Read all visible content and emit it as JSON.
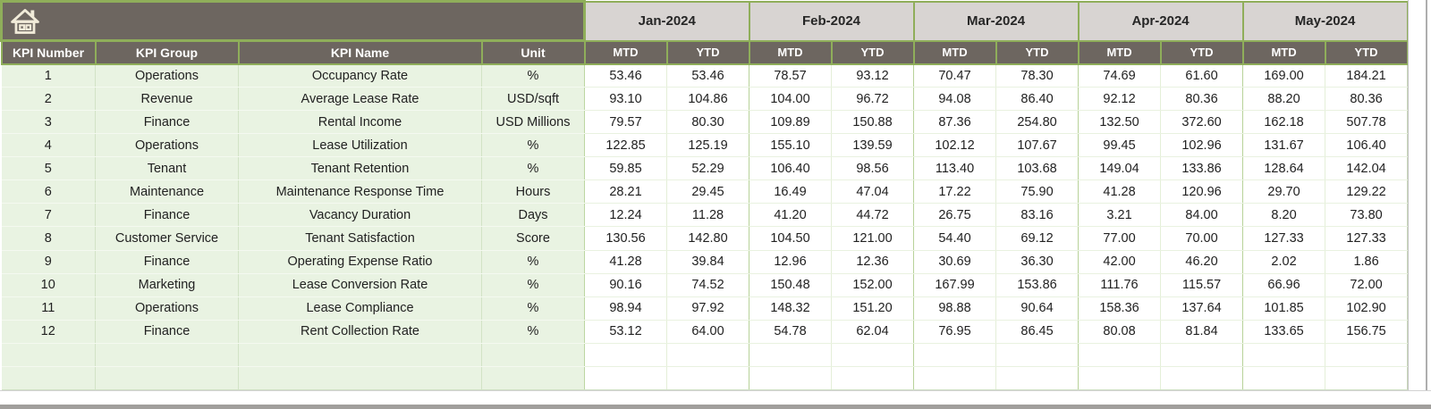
{
  "sheet": {
    "month_headers": [
      "Jan-2024",
      "Feb-2024",
      "Mar-2024",
      "Apr-2024",
      "May-2024"
    ],
    "period_subheaders": [
      "MTD",
      "YTD"
    ],
    "kpi_headers": [
      "KPI Number",
      "KPI Group",
      "KPI Name",
      "Unit"
    ],
    "rows": [
      {
        "number": "1",
        "group": "Operations",
        "name": "Occupancy Rate",
        "unit": "%",
        "values": [
          "53.46",
          "53.46",
          "78.57",
          "93.12",
          "70.47",
          "78.30",
          "74.69",
          "61.60",
          "169.00",
          "184.21"
        ]
      },
      {
        "number": "2",
        "group": "Revenue",
        "name": "Average Lease Rate",
        "unit": "USD/sqft",
        "values": [
          "93.10",
          "104.86",
          "104.00",
          "96.72",
          "94.08",
          "86.40",
          "92.12",
          "80.36",
          "88.20",
          "80.36"
        ]
      },
      {
        "number": "3",
        "group": "Finance",
        "name": "Rental Income",
        "unit": "USD Millions",
        "values": [
          "79.57",
          "80.30",
          "109.89",
          "150.88",
          "87.36",
          "254.80",
          "132.50",
          "372.60",
          "162.18",
          "507.78"
        ]
      },
      {
        "number": "4",
        "group": "Operations",
        "name": "Lease Utilization",
        "unit": "%",
        "values": [
          "122.85",
          "125.19",
          "155.10",
          "139.59",
          "102.12",
          "107.67",
          "99.45",
          "102.96",
          "131.67",
          "106.40"
        ]
      },
      {
        "number": "5",
        "group": "Tenant",
        "name": "Tenant Retention",
        "unit": "%",
        "values": [
          "59.85",
          "52.29",
          "106.40",
          "98.56",
          "113.40",
          "103.68",
          "149.04",
          "133.86",
          "128.64",
          "142.04"
        ]
      },
      {
        "number": "6",
        "group": "Maintenance",
        "name": "Maintenance Response Time",
        "unit": "Hours",
        "values": [
          "28.21",
          "29.45",
          "16.49",
          "47.04",
          "17.22",
          "75.90",
          "41.28",
          "120.96",
          "29.70",
          "129.22"
        ]
      },
      {
        "number": "7",
        "group": "Finance",
        "name": "Vacancy Duration",
        "unit": "Days",
        "values": [
          "12.24",
          "11.28",
          "41.20",
          "44.72",
          "26.75",
          "83.16",
          "3.21",
          "84.00",
          "8.20",
          "73.80"
        ]
      },
      {
        "number": "8",
        "group": "Customer Service",
        "name": "Tenant Satisfaction",
        "unit": "Score",
        "values": [
          "130.56",
          "142.80",
          "104.50",
          "121.00",
          "54.40",
          "69.12",
          "77.00",
          "70.00",
          "127.33",
          "127.33"
        ]
      },
      {
        "number": "9",
        "group": "Finance",
        "name": "Operating Expense Ratio",
        "unit": "%",
        "values": [
          "41.28",
          "39.84",
          "12.96",
          "12.36",
          "30.69",
          "36.30",
          "42.00",
          "46.20",
          "2.02",
          "1.86"
        ]
      },
      {
        "number": "10",
        "group": "Marketing",
        "name": "Lease Conversion Rate",
        "unit": "%",
        "values": [
          "90.16",
          "74.52",
          "150.48",
          "152.00",
          "167.99",
          "153.86",
          "111.76",
          "115.57",
          "66.96",
          "72.00"
        ]
      },
      {
        "number": "11",
        "group": "Operations",
        "name": "Lease Compliance",
        "unit": "%",
        "values": [
          "98.94",
          "97.92",
          "148.32",
          "151.20",
          "98.88",
          "90.64",
          "158.36",
          "137.64",
          "101.85",
          "102.90"
        ]
      },
      {
        "number": "12",
        "group": "Finance",
        "name": "Rent Collection Rate",
        "unit": "%",
        "values": [
          "53.12",
          "64.00",
          "54.78",
          "62.04",
          "76.95",
          "86.45",
          "80.08",
          "81.84",
          "133.65",
          "156.75"
        ]
      }
    ],
    "empty_rows": 2
  },
  "colors": {
    "header_dark": "#6d6660",
    "month_header_bg": "#d8d4d2",
    "green_border": "#8fae5a",
    "row_green": "#e9f3e2",
    "grid_green_strong": "#b7d299",
    "icon_cream": "#f1ebd9",
    "bottom_bar": "#a19f9c"
  }
}
